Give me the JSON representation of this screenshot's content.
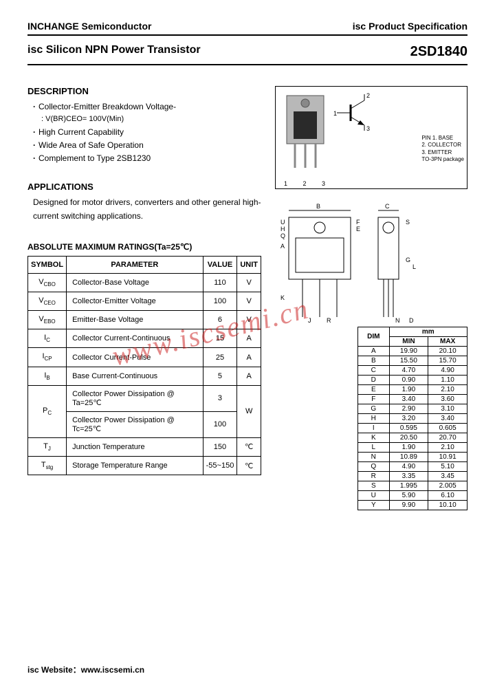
{
  "header": {
    "company": "INCHANGE Semiconductor",
    "doc_type": "isc Product Specification"
  },
  "title": {
    "product_line": "isc Silicon NPN Power Transistor",
    "part_number": "2SD1840"
  },
  "description": {
    "heading": "DESCRIPTION",
    "items": [
      "Collector-Emitter Breakdown Voltage-",
      "High Current Capability",
      "Wide Area of Safe Operation",
      "Complement to Type 2SB1230"
    ],
    "sub_after_0": ": V(BR)CEO= 100V(Min)"
  },
  "applications": {
    "heading": "APPLICATIONS",
    "text": "Designed for motor drivers, converters and other general high-current switching applications."
  },
  "ratings": {
    "heading": "ABSOLUTE MAXIMUM RATINGS(Ta=25℃)",
    "columns": [
      "SYMBOL",
      "PARAMETER",
      "VALUE",
      "UNIT"
    ],
    "rows": [
      {
        "symbol": "VCBO",
        "param": "Collector-Base Voltage",
        "value": "110",
        "unit": "V"
      },
      {
        "symbol": "VCEO",
        "param": "Collector-Emitter Voltage",
        "value": "100",
        "unit": "V"
      },
      {
        "symbol": "VEBO",
        "param": "Emitter-Base Voltage",
        "value": "6",
        "unit": "V"
      },
      {
        "symbol": "IC",
        "param": "Collector Current-Continuous",
        "value": "15",
        "unit": "A"
      },
      {
        "symbol": "ICP",
        "param": "Collector Current-Pulse",
        "value": "25",
        "unit": "A"
      },
      {
        "symbol": "IB",
        "param": "Base Current-Continuous",
        "value": "5",
        "unit": "A"
      }
    ],
    "pc_symbol": "PC",
    "pc_rows": [
      {
        "param": "Collector Power Dissipation @ Ta=25℃",
        "value": "3"
      },
      {
        "param": "Collector Power Dissipation @ Tc=25℃",
        "value": "100"
      }
    ],
    "pc_unit": "W",
    "tj": {
      "symbol": "TJ",
      "param": "Junction Temperature",
      "value": "150",
      "unit": "℃"
    },
    "tstg": {
      "symbol": "Tstg",
      "param": "Storage Temperature Range",
      "value": "-55~150",
      "unit": "℃"
    }
  },
  "package": {
    "pin_heading": "PIN",
    "pins": [
      "1. BASE",
      "2. COLLECTOR",
      "3. EMITTER"
    ],
    "pkg_type": "TO-3PN package",
    "pin_numbers": "1 2 3",
    "schematic_labels": {
      "p1": "1",
      "p2": "2",
      "p3": "3"
    }
  },
  "dimensions": {
    "unit_label": "mm",
    "dim_col": "DIM",
    "min_col": "MIN",
    "max_col": "MAX",
    "rows": [
      {
        "d": "A",
        "min": "19.90",
        "max": "20.10"
      },
      {
        "d": "B",
        "min": "15.50",
        "max": "15.70"
      },
      {
        "d": "C",
        "min": "4.70",
        "max": "4.90"
      },
      {
        "d": "D",
        "min": "0.90",
        "max": "1.10"
      },
      {
        "d": "E",
        "min": "1.90",
        "max": "2.10"
      },
      {
        "d": "F",
        "min": "3.40",
        "max": "3.60"
      },
      {
        "d": "G",
        "min": "2.90",
        "max": "3.10"
      },
      {
        "d": "H",
        "min": "3.20",
        "max": "3.40"
      },
      {
        "d": "I",
        "min": "0.595",
        "max": "0.605"
      },
      {
        "d": "K",
        "min": "20.50",
        "max": "20.70"
      },
      {
        "d": "L",
        "min": "1.90",
        "max": "2.10"
      },
      {
        "d": "N",
        "min": "10.89",
        "max": "10.91"
      },
      {
        "d": "Q",
        "min": "4.90",
        "max": "5.10"
      },
      {
        "d": "R",
        "min": "3.35",
        "max": "3.45"
      },
      {
        "d": "S",
        "min": "1.995",
        "max": "2.005"
      },
      {
        "d": "U",
        "min": "5.90",
        "max": "6.10"
      },
      {
        "d": "Y",
        "min": "9.90",
        "max": "10.10"
      }
    ],
    "drawing_labels": [
      "A",
      "B",
      "C",
      "D",
      "E",
      "F",
      "G",
      "H",
      "J",
      "K",
      "L",
      "N",
      "Q",
      "R",
      "S",
      "U"
    ]
  },
  "watermark": "www.iscsemi.cn",
  "footer": "isc Website：www.iscsemi.cn",
  "colors": {
    "text": "#000000",
    "bg": "#ffffff",
    "border": "#000000",
    "watermark": "rgba(200,20,20,0.5)",
    "pkg_body": "#b8b8b8",
    "pkg_die": "#2a2a2a"
  }
}
